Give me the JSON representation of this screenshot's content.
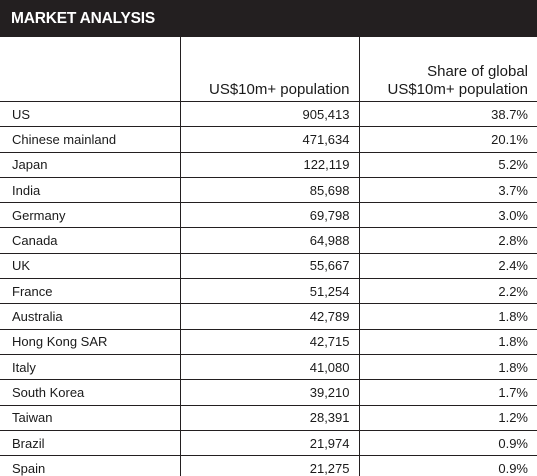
{
  "header": {
    "title": "MARKET ANALYSIS"
  },
  "table": {
    "columns": [
      "",
      "US$10m+ population",
      "Share of global\nUS$10m+ population"
    ],
    "column_lines": {
      "col2": [
        "US$10m+ population"
      ],
      "col3": [
        "Share of global",
        "US$10m+ population"
      ]
    },
    "rows": [
      {
        "country": "US",
        "population": "905,413",
        "share": "38.7%"
      },
      {
        "country": "Chinese mainland",
        "population": "471,634",
        "share": "20.1%"
      },
      {
        "country": "Japan",
        "population": "122,119",
        "share": "5.2%"
      },
      {
        "country": "India",
        "population": "85,698",
        "share": "3.7%"
      },
      {
        "country": "Germany",
        "population": "69,798",
        "share": "3.0%"
      },
      {
        "country": "Canada",
        "population": "64,988",
        "share": "2.8%"
      },
      {
        "country": "UK",
        "population": "55,667",
        "share": "2.4%"
      },
      {
        "country": "France",
        "population": "51,254",
        "share": "2.2%"
      },
      {
        "country": "Australia",
        "population": "42,789",
        "share": "1.8%"
      },
      {
        "country": "Hong Kong SAR",
        "population": "42,715",
        "share": "1.8%"
      },
      {
        "country": "Italy",
        "population": "41,080",
        "share": "1.8%"
      },
      {
        "country": "South Korea",
        "population": "39,210",
        "share": "1.7%"
      },
      {
        "country": "Taiwan",
        "population": "28,391",
        "share": "1.2%"
      },
      {
        "country": "Brazil",
        "population": "21,974",
        "share": "0.9%"
      },
      {
        "country": "Spain",
        "population": "21,275",
        "share": "0.9%"
      }
    ]
  },
  "colors": {
    "header_background": "#231f20",
    "header_text": "#ffffff",
    "cell_background": "#ffffff",
    "grid_lines": "#231f20"
  }
}
